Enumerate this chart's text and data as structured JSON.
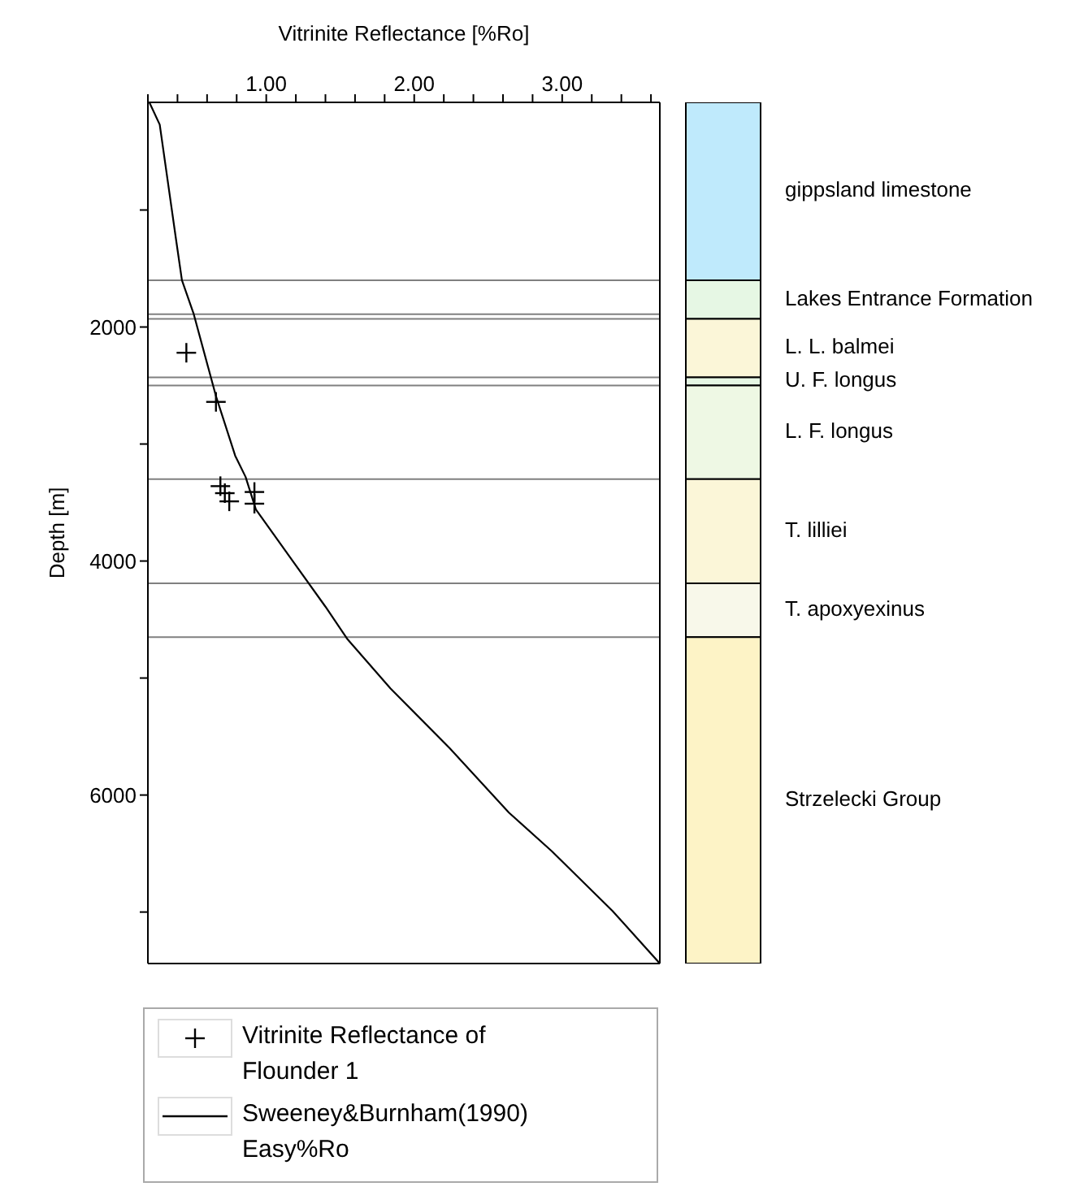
{
  "chart_data": [
    {
      "type": "line",
      "xlabel": "Vitrinite Reflectance [%Ro]",
      "ylabel": "Depth [m]",
      "xlim": [
        0.2,
        3.66
      ],
      "xticks": [
        {
          "value": 0.2,
          "label": null
        },
        {
          "value": 0.4,
          "label": null
        },
        {
          "value": 0.6,
          "label": null
        },
        {
          "value": 0.8,
          "label": null
        },
        {
          "value": 1,
          "label": "1.00"
        },
        {
          "value": 1.2,
          "label": null
        },
        {
          "value": 1.4,
          "label": null
        },
        {
          "value": 1.6,
          "label": null
        },
        {
          "value": 1.8,
          "label": null
        },
        {
          "value": 2,
          "label": "2.00"
        },
        {
          "value": 2.2,
          "label": null
        },
        {
          "value": 2.4,
          "label": null
        },
        {
          "value": 2.6,
          "label": null
        },
        {
          "value": 2.8,
          "label": null
        },
        {
          "value": 3,
          "label": "3.00"
        },
        {
          "value": 3.2,
          "label": null
        },
        {
          "value": 3.4,
          "label": null
        },
        {
          "value": 3.6,
          "label": null
        }
      ],
      "ylim": [
        7440,
        80
      ],
      "yticks": [
        {
          "value": 1000,
          "label": null
        },
        2000,
        {
          "value": 3000,
          "label": null
        },
        4000,
        {
          "value": 5000,
          "label": null
        },
        6000,
        {
          "value": 7000,
          "label": null
        }
      ],
      "legend": "bottom",
      "series": [
        {
          "name": "Vitrinite Reflectance of Flounder 1",
          "type": "scatter",
          "color": "#000000",
          "marker": "cross",
          "x": [
            0.46,
            0.66,
            0.69,
            0.72,
            0.75,
            0.92,
            0.92
          ],
          "values": [
            2220,
            2640,
            3360,
            3420,
            3490,
            3410,
            3510
          ]
        },
        {
          "name": "Sweeney&Burnham(1990) Easy%Ro",
          "type": "line",
          "color": "#000000",
          "marker": "none",
          "line_style": "solid",
          "x": [
            0.21,
            0.28,
            0.39,
            0.43,
            0.51,
            0.66,
            0.79,
            0.86,
            0.93,
            1.19,
            1.4,
            1.55,
            1.84,
            2.24,
            2.64,
            2.93,
            3.34,
            3.66
          ],
          "values": [
            80,
            270,
            1250,
            1600,
            1890,
            2590,
            3100,
            3280,
            3560,
            4020,
            4390,
            4670,
            5090,
            5600,
            6150,
            6480,
            6990,
            7440
          ]
        }
      ],
      "ref_lines": [
        {
          "axis": "y",
          "value": 1600,
          "color": "#808080"
        },
        {
          "axis": "y",
          "value": 1890,
          "color": "#808080"
        },
        {
          "axis": "y",
          "value": 1930,
          "color": "#808080"
        },
        {
          "axis": "y",
          "value": 2430,
          "color": "#808080"
        },
        {
          "axis": "y",
          "value": 2500,
          "color": "#808080"
        },
        {
          "axis": "y",
          "value": 3300,
          "color": "#808080"
        },
        {
          "axis": "y",
          "value": 4190,
          "color": "#808080"
        },
        {
          "axis": "y",
          "value": 4650,
          "color": "#808080"
        }
      ]
    },
    {
      "type": "bar",
      "categories": [
        null
      ],
      "ylim": [
        7440,
        80
      ],
      "tick_labels": false,
      "series": [
        {
          "name": "gippsland limestone",
          "color": "#bfeafc",
          "base": [
            80
          ],
          "values": [
            1520
          ]
        },
        {
          "name": "Lakes Entrance Formation",
          "color": "#e6f7e4",
          "base": [
            1600
          ],
          "values": [
            330
          ]
        },
        {
          "name": "L. L. balmei",
          "color": "#fbf6d8",
          "base": [
            1930
          ],
          "values": [
            500
          ]
        },
        {
          "name": "U. F. longus",
          "color": "#e6f7e4",
          "base": [
            2430
          ],
          "values": [
            70
          ]
        },
        {
          "name": "L. F. longus",
          "color": "#eef8e4",
          "base": [
            2500
          ],
          "values": [
            800
          ]
        },
        {
          "name": "T. lilliei",
          "color": "#fbf6d8",
          "base": [
            3300
          ],
          "values": [
            890
          ]
        },
        {
          "name": "T. apoxyexinus",
          "color": "#f8f8ea",
          "base": [
            4190
          ],
          "values": [
            460
          ]
        },
        {
          "name": "Strzelecki Group",
          "color": "#fdf3c6",
          "base": [
            4650
          ],
          "values": [
            2790
          ]
        }
      ]
    }
  ]
}
